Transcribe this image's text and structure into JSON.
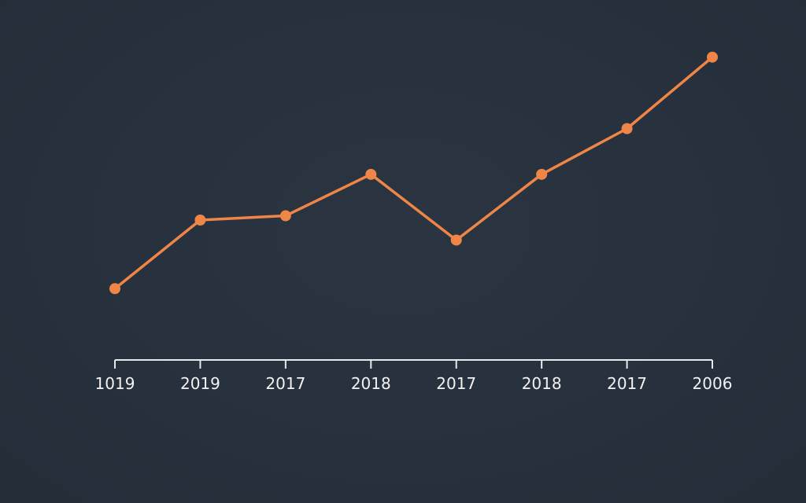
{
  "colors": {
    "background": "#28323e",
    "line": "#ef8547",
    "axis": "#e8e8e8",
    "text": "#f2f2f2"
  },
  "chart_data": {
    "type": "line",
    "categories": [
      "1019",
      "2019",
      "2017",
      "2018",
      "2017",
      "2018",
      "2017",
      "2006"
    ],
    "values": [
      20,
      44,
      45.5,
      60,
      37,
      60,
      76,
      101
    ],
    "ylim": [
      0,
      110
    ],
    "grid": false,
    "legend": "none"
  }
}
